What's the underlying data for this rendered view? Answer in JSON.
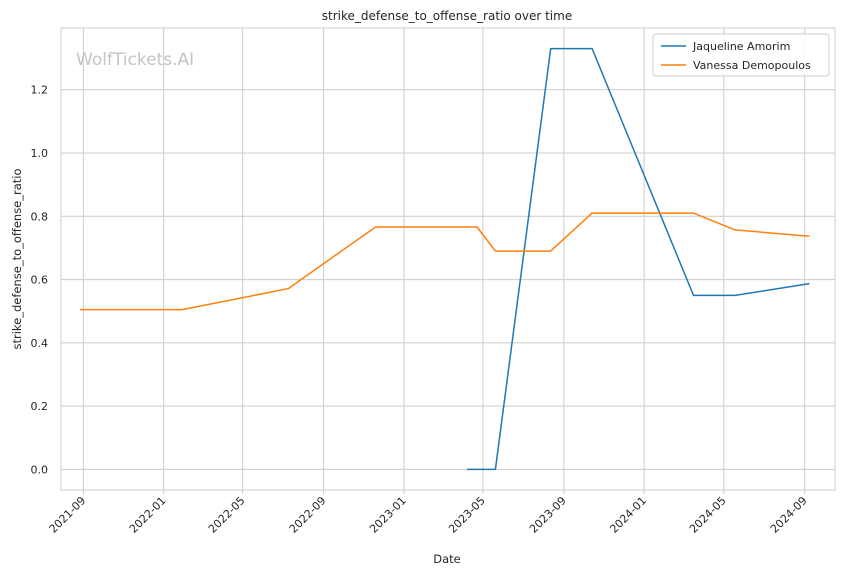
{
  "chart_data": {
    "type": "line",
    "title": "strike_defense_to_offense_ratio over time",
    "xlabel": "Date",
    "ylabel": "strike_defense_to_offense_ratio",
    "watermark": "WolfTickets.AI",
    "x_ticks": [
      "2021-09",
      "2022-01",
      "2022-05",
      "2022-09",
      "2023-01",
      "2023-05",
      "2023-09",
      "2024-01",
      "2024-05",
      "2024-09"
    ],
    "y_ticks": [
      "0.0",
      "0.2",
      "0.4",
      "0.6",
      "0.8",
      "1.0",
      "1.2"
    ],
    "xlim": [
      "2021-07-29",
      "2024-10-17"
    ],
    "ylim": [
      -0.065,
      1.395
    ],
    "grid": true,
    "legend_position": "top-right",
    "series": [
      {
        "name": "Jaqueline Amorim",
        "color": "#1f77b4",
        "points": [
          {
            "x": "2023-04-08",
            "y": 0.0
          },
          {
            "x": "2023-05-20",
            "y": 0.0
          },
          {
            "x": "2023-08-12",
            "y": 1.33
          },
          {
            "x": "2023-10-14",
            "y": 1.33
          },
          {
            "x": "2024-03-16",
            "y": 0.55
          },
          {
            "x": "2024-05-18",
            "y": 0.55
          },
          {
            "x": "2024-09-07",
            "y": 0.587
          }
        ]
      },
      {
        "name": "Vanessa Demopoulos",
        "color": "#ff7f0e",
        "points": [
          {
            "x": "2021-08-28",
            "y": 0.505
          },
          {
            "x": "2022-01-29",
            "y": 0.505
          },
          {
            "x": "2022-07-09",
            "y": 0.571
          },
          {
            "x": "2022-11-19",
            "y": 0.766
          },
          {
            "x": "2023-04-22",
            "y": 0.766
          },
          {
            "x": "2023-05-20",
            "y": 0.69
          },
          {
            "x": "2023-08-12",
            "y": 0.69
          },
          {
            "x": "2023-10-14",
            "y": 0.81
          },
          {
            "x": "2024-03-16",
            "y": 0.81
          },
          {
            "x": "2024-05-18",
            "y": 0.757
          },
          {
            "x": "2024-09-07",
            "y": 0.737
          }
        ]
      }
    ]
  }
}
